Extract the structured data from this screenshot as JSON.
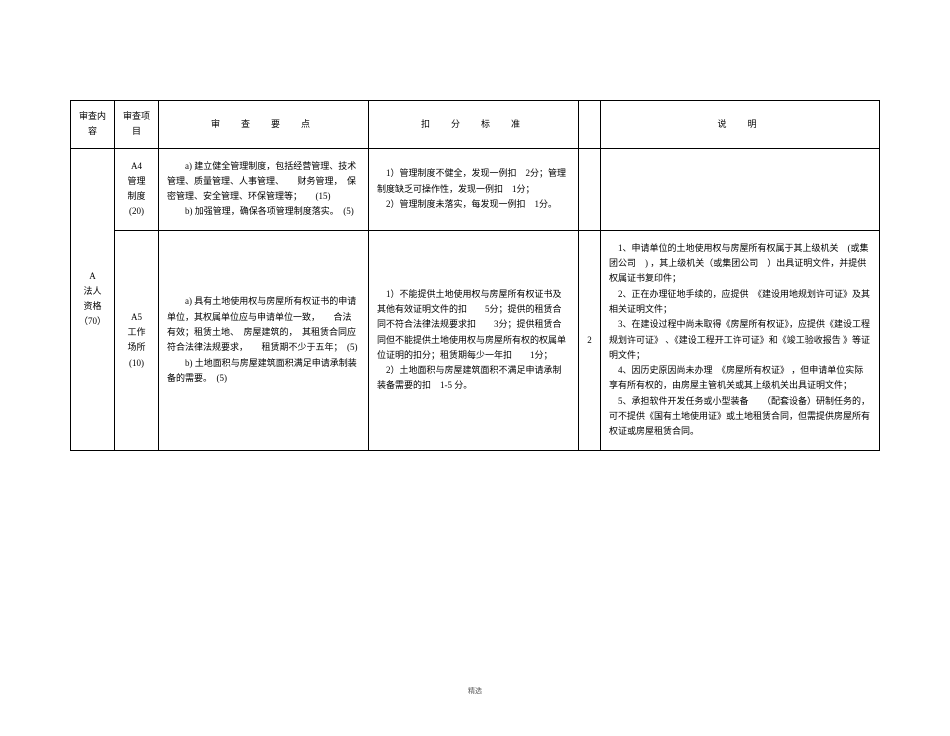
{
  "headers": {
    "col1": "审查内容",
    "col2": "审查项目",
    "col3": "审　查　要　点",
    "col4": "扣　分　标　准",
    "col5": "",
    "col6": "说　明"
  },
  "col1_label": "A\n法人\n资格\n（70）",
  "row1": {
    "col2": "A4\n管理\n制度\n(20)",
    "col3": "　　a) 建立健全管理制度，包括经营管理、技术管理、质量管理、人事管理、　　财务管理，　保密管理、安全管理、环保管理等；　　(15)\n　　b) 加强管理，确保各项管理制度落实。　(5)",
    "col4": "　1）管理制度不健全，发现一例扣　2分；管理制度缺乏可操作性，发现一例扣　1分；\n　2）管理制度未落实，每发现一例扣　1分。",
    "col5": "",
    "col6": ""
  },
  "row2": {
    "col2": "A5\n工作\n场所\n(10)",
    "col3": "　　a) 具有土地使用权与房屋所有权证书的申请单位，其权属单位应与申请单位一致，　　合法有效；租赁土地、　房屋建筑的，　其租赁合同应符合法律法规要求，　　租赁期不少于五年；　(5)\n　　b) 土地面积与房屋建筑面积满足申请承制装备的需要。　(5)",
    "col4": "　1）不能提供土地使用权与房屋所有权证书及其他有效证明文件的扣　　5分；提供的租赁合同不符合法律法规要求扣　　3分；提供租赁合同但不能提供土地使用权与房屋所有权的权属单位证明的扣分；租赁期每少一年扣　　1分；\n　2）土地面积与房屋建筑面积不满足申请承制装备需要的扣　1-5 分。",
    "col5": "2",
    "col6": "　1、申请单位的土地使用权与房屋所有权属于其上级机关　(或集团公司　) ，其上级机关（或集团公司　）出具证明文件，并提供权属证书复印件；\n　2、正在办理征地手续的，应提供　《建设用地规划许可证》及其相关证明文件；\n　3、在建设过程中尚未取得《房屋所有权证》，应提供《建设工程规划许可证》 、《建设工程开工许可证》和《竣工验收报告 》等证明文件；\n　4、因历史原因尚未办理　《房屋所有权证》 ，但申请单位实际享有所有权的，由房屋主管机关或其上级机关出具证明文件；\n　5、承担软件开发任务或小型装备　　（配套设备）研制任务的，　可不提供《国有土地使用证》或土地租赁合同，但需提供房屋所有权证或房屋租赁合同。"
  },
  "page_number": "精选"
}
